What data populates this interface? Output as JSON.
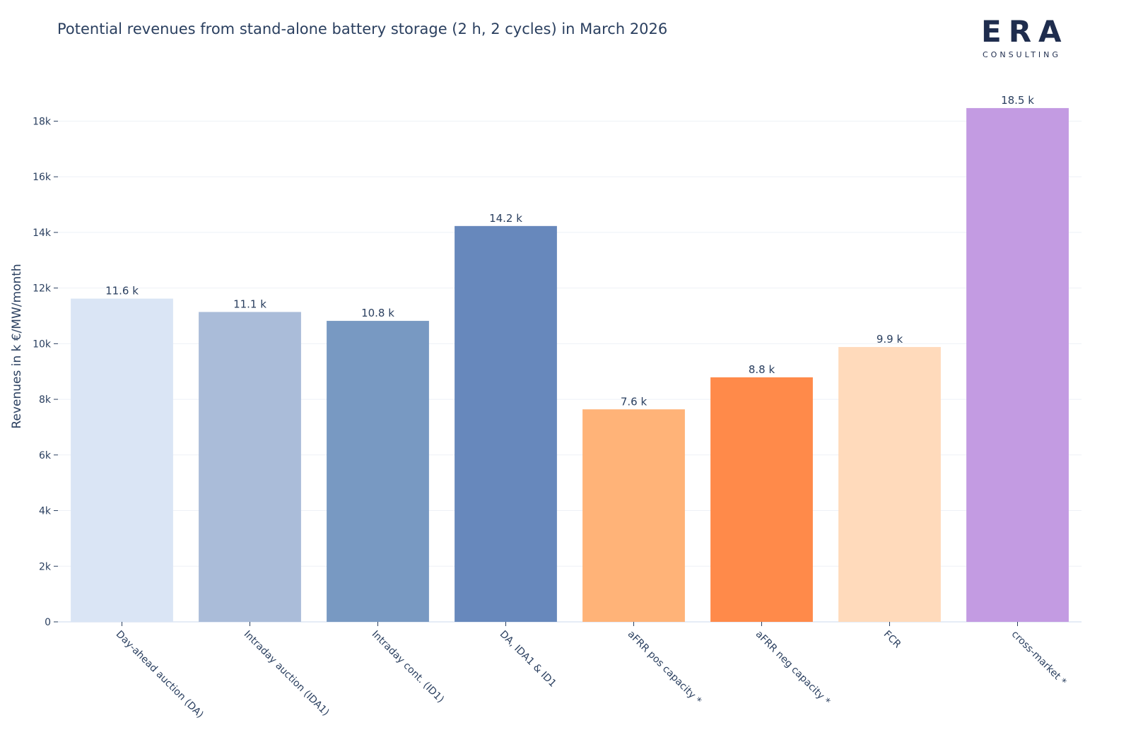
{
  "header": {
    "title": "Potential revenues from stand-alone battery storage (2 h, 2 cycles) in March 2026"
  },
  "logo": {
    "main": "ERA",
    "sub": "CONSULTING"
  },
  "chart_data": {
    "type": "bar",
    "title": "Potential revenues from stand-alone battery storage (2 h, 2 cycles) in March 2026",
    "xlabel": "",
    "ylabel": "Revenues in k €/MW/month",
    "ylim": [
      0,
      18900
    ],
    "y_ticks": [
      0,
      2000,
      4000,
      6000,
      8000,
      10000,
      12000,
      14000,
      16000,
      18000
    ],
    "y_tick_labels": [
      "0",
      "2k",
      "4k",
      "6k",
      "8k",
      "10k",
      "12k",
      "14k",
      "16k",
      "18k"
    ],
    "grid": true,
    "categories": [
      "Day-ahead auction (DA)",
      "Intraday auction (IDA1)",
      "Intraday cont. (ID1)",
      "DA, IDA1 & ID1",
      "aFRR pos capacity *",
      "aFRR neg capacity *",
      "FCR",
      "cross-market *"
    ],
    "values": [
      11620,
      11140,
      10820,
      14230,
      7640,
      8790,
      9880,
      18470
    ],
    "data_labels": [
      "11.6 k",
      "11.1 k",
      "10.8 k",
      "14.2 k",
      "7.6 k",
      "8.8 k",
      "9.9 k",
      "18.5 k"
    ],
    "colors": [
      "#dae5f5",
      "#aabcd9",
      "#7899c2",
      "#6788bc",
      "#ffb378",
      "#ff8a4a",
      "#ffdabb",
      "#c39be2"
    ]
  }
}
